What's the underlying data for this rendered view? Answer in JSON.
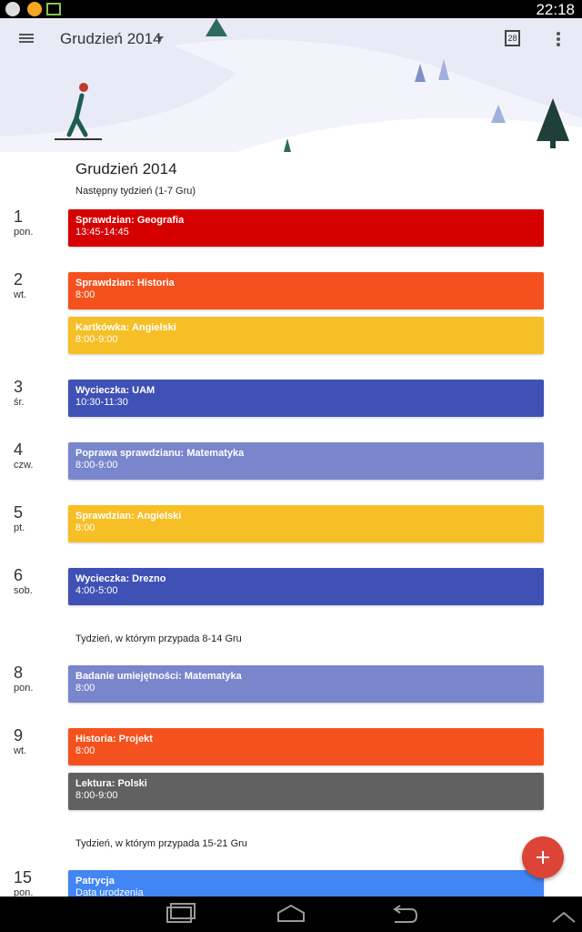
{
  "status_bar": {
    "time": "22:18"
  },
  "toolbar": {
    "title": "Grudzień 2014",
    "calendar_day": "28"
  },
  "agenda": {
    "month": "Grudzień 2014",
    "weeks": [
      {
        "label": "Następny tydzień (1-7 Gru)",
        "days": [
          {
            "day": "1",
            "weekday": "pon.",
            "events": [
              {
                "title": "Sprawdzian: Geografia",
                "time": "13:45-14:45",
                "color": "#d50000"
              }
            ]
          },
          {
            "day": "2",
            "weekday": "wt.",
            "events": [
              {
                "title": "Sprawdzian: Historia",
                "time": "8:00",
                "color": "#f4511e"
              },
              {
                "title": "Kartkówka: Angielski",
                "time": "8:00-9:00",
                "color": "#f6bf26"
              }
            ]
          },
          {
            "day": "3",
            "weekday": "śr.",
            "events": [
              {
                "title": "Wycieczka: UAM",
                "time": "10:30-11:30",
                "color": "#3f51b5"
              }
            ]
          },
          {
            "day": "4",
            "weekday": "czw.",
            "events": [
              {
                "title": "Poprawa sprawdzianu: Matematyka",
                "time": "8:00-9:00",
                "color": "#7986cb"
              }
            ]
          },
          {
            "day": "5",
            "weekday": "pt.",
            "events": [
              {
                "title": "Sprawdzian: Angielski",
                "time": "8:00",
                "color": "#f6bf26"
              }
            ]
          },
          {
            "day": "6",
            "weekday": "sob.",
            "events": [
              {
                "title": "Wycieczka: Drezno",
                "time": "4:00-5:00",
                "color": "#3f51b5"
              }
            ]
          }
        ]
      },
      {
        "label": "Tydzień, w którym przypada 8-14 Gru",
        "days": [
          {
            "day": "8",
            "weekday": "pon.",
            "events": [
              {
                "title": "Badanie umiejętności: Matematyka",
                "time": "8:00",
                "color": "#7986cb"
              }
            ]
          },
          {
            "day": "9",
            "weekday": "wt.",
            "events": [
              {
                "title": "Historia: Projekt",
                "time": "8:00",
                "color": "#f4511e"
              },
              {
                "title": "Lektura: Polski",
                "time": "8:00-9:00",
                "color": "#616161"
              }
            ]
          }
        ]
      },
      {
        "label": "Tydzień, w którym przypada 15-21 Gru",
        "days": [
          {
            "day": "15",
            "weekday": "pon.",
            "events": [
              {
                "title": "Patrycja",
                "time": "Data urodzenia",
                "color": "#4285f4"
              }
            ]
          }
        ]
      }
    ]
  }
}
